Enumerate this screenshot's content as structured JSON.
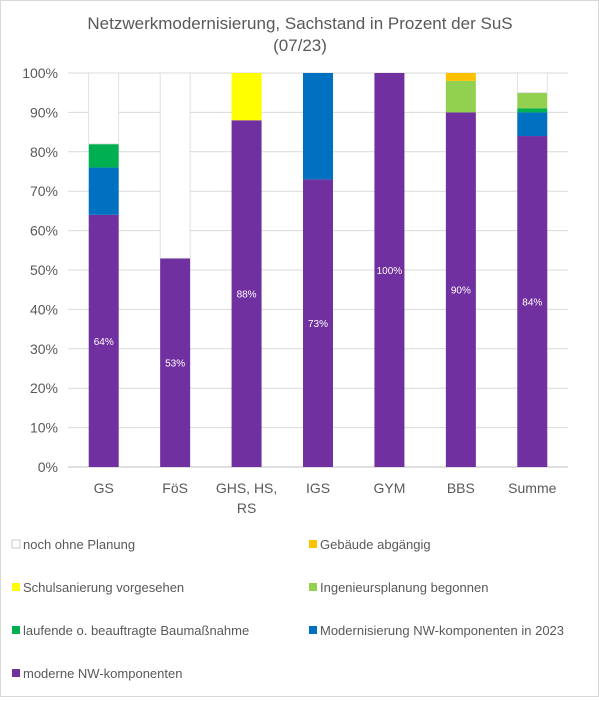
{
  "chart_data": {
    "type": "bar",
    "stacked": true,
    "title": "Netzwerkmodernisierung, Sachstand in Prozent der SuS",
    "subtitle": "(07/23)",
    "categories": [
      [
        "GS"
      ],
      [
        "FöS"
      ],
      [
        "GHS, HS,",
        "RS"
      ],
      [
        "IGS"
      ],
      [
        "GYM"
      ],
      [
        "BBS"
      ],
      [
        "Summe"
      ]
    ],
    "ylim": [
      0,
      100
    ],
    "yticks": [
      "0%",
      "10%",
      "20%",
      "30%",
      "40%",
      "50%",
      "60%",
      "70%",
      "80%",
      "90%",
      "100%"
    ],
    "legend_position": "bottom",
    "series": [
      {
        "name": "moderne NW-komponenten",
        "color": "#7030a0",
        "values": [
          64,
          53,
          88,
          73,
          100,
          90,
          84
        ],
        "labels": [
          "64%",
          "53%",
          "88%",
          "73%",
          "100%",
          "90%",
          "84%"
        ]
      },
      {
        "name": "Modernisierung NW-komponenten in 2023",
        "color": "#0070c0",
        "values": [
          12,
          0,
          0,
          27,
          0,
          0,
          6
        ]
      },
      {
        "name": "laufende o. beauftragte Baumaßnahme",
        "color": "#00b050",
        "values": [
          6,
          0,
          0,
          0,
          0,
          0,
          1
        ]
      },
      {
        "name": "Ingenieursplanung begonnen",
        "color": "#92d050",
        "values": [
          0,
          0,
          0,
          0,
          0,
          8,
          4
        ]
      },
      {
        "name": "Schulsanierung vorgesehen",
        "color": "#ffff00",
        "values": [
          0,
          0,
          12,
          0,
          0,
          0,
          0
        ]
      },
      {
        "name": "Gebäude abgängig",
        "color": "#ffc000",
        "values": [
          0,
          0,
          0,
          0,
          0,
          2,
          0
        ]
      },
      {
        "name": "noch ohne Planung",
        "color": "#ffffff",
        "values": [
          18,
          47,
          0,
          0,
          0,
          0,
          5
        ]
      }
    ],
    "legend_order": [
      "noch ohne Planung",
      "Gebäude abgängig",
      "Schulsanierung vorgesehen",
      "Ingenieursplanung begonnen",
      "laufende o. beauftragte Baumaßnahme",
      "Modernisierung NW-komponenten in 2023",
      "moderne NW-komponenten"
    ],
    "grid": true
  }
}
